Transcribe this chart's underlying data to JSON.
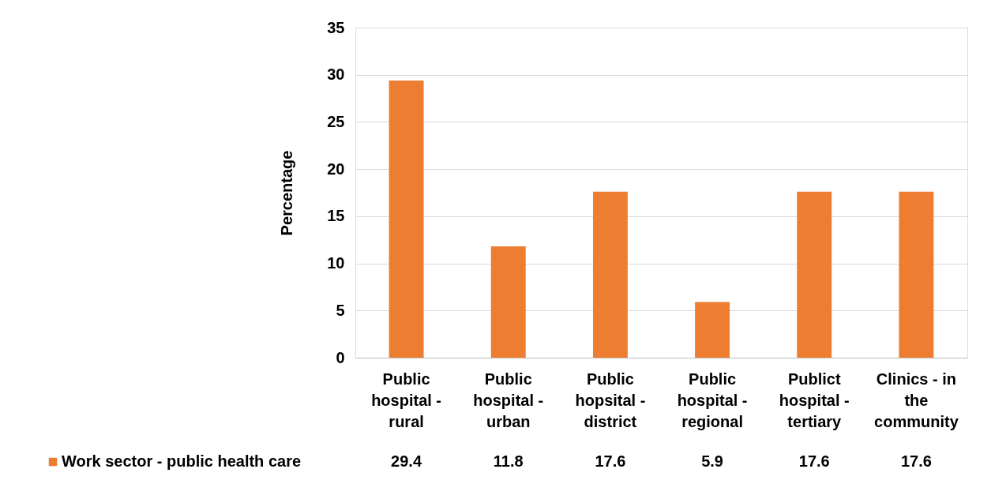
{
  "chart_data": {
    "type": "bar",
    "ylabel": "Percentage",
    "categories": [
      "Public hospital - rural",
      "Public hospital - urban",
      "Public hopsital - district",
      "Public hospital - regional",
      "Publict hospital - tertiary",
      "Clinics - in the community"
    ],
    "series": [
      {
        "name": "Work sector - public health care",
        "color": "#ed7d31",
        "values": [
          29.4,
          11.8,
          17.6,
          5.9,
          17.6,
          17.6
        ]
      }
    ],
    "ylim": [
      0,
      35
    ],
    "yticks": [
      0,
      5,
      10,
      15,
      20,
      25,
      30,
      35
    ],
    "grid": "y",
    "legend": "bottom",
    "data_labels": true
  }
}
